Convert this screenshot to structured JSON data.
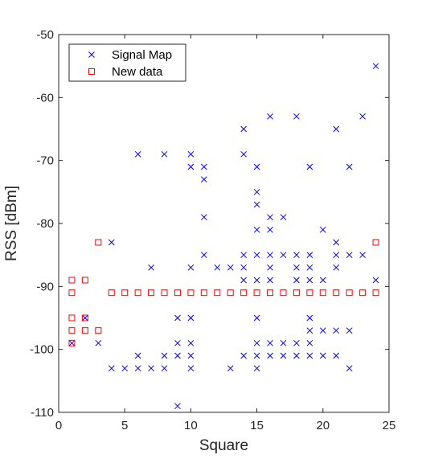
{
  "chart_data": {
    "type": "scatter",
    "title": "",
    "xlabel": "Square",
    "ylabel": "RSS [dBm]",
    "xlim": [
      0,
      25
    ],
    "ylim": [
      -110,
      -50
    ],
    "xticks": [
      0,
      5,
      10,
      15,
      20,
      25
    ],
    "yticks": [
      -110,
      -100,
      -90,
      -80,
      -70,
      -60,
      -50
    ],
    "grid": false,
    "legend_position": "top-left",
    "series": [
      {
        "name": "Signal Map",
        "marker": "x",
        "color": "#0000ff",
        "points": [
          [
            1,
            -99
          ],
          [
            2,
            -95
          ],
          [
            3,
            -99
          ],
          [
            4,
            -83
          ],
          [
            4,
            -103
          ],
          [
            5,
            -103
          ],
          [
            6,
            -69
          ],
          [
            6,
            -101
          ],
          [
            6,
            -103
          ],
          [
            7,
            -87
          ],
          [
            7,
            -103
          ],
          [
            8,
            -69
          ],
          [
            8,
            -101
          ],
          [
            8,
            -103
          ],
          [
            9,
            -95
          ],
          [
            9,
            -99
          ],
          [
            9,
            -101
          ],
          [
            9,
            -109
          ],
          [
            10,
            -69
          ],
          [
            10,
            -71
          ],
          [
            10,
            -87
          ],
          [
            10,
            -95
          ],
          [
            10,
            -99
          ],
          [
            10,
            -101
          ],
          [
            10,
            -103
          ],
          [
            11,
            -71
          ],
          [
            11,
            -73
          ],
          [
            11,
            -79
          ],
          [
            11,
            -85
          ],
          [
            12,
            -87
          ],
          [
            13,
            -87
          ],
          [
            13,
            -103
          ],
          [
            14,
            -65
          ],
          [
            14,
            -69
          ],
          [
            14,
            -85
          ],
          [
            14,
            -87
          ],
          [
            14,
            -89
          ],
          [
            14,
            -101
          ],
          [
            15,
            -71
          ],
          [
            15,
            -75
          ],
          [
            15,
            -77
          ],
          [
            15,
            -81
          ],
          [
            15,
            -85
          ],
          [
            15,
            -89
          ],
          [
            15,
            -95
          ],
          [
            15,
            -99
          ],
          [
            15,
            -101
          ],
          [
            15,
            -103
          ],
          [
            16,
            -63
          ],
          [
            16,
            -79
          ],
          [
            16,
            -81
          ],
          [
            16,
            -85
          ],
          [
            16,
            -87
          ],
          [
            16,
            -89
          ],
          [
            16,
            -99
          ],
          [
            16,
            -101
          ],
          [
            17,
            -79
          ],
          [
            17,
            -85
          ],
          [
            17,
            -99
          ],
          [
            17,
            -101
          ],
          [
            18,
            -63
          ],
          [
            18,
            -85
          ],
          [
            18,
            -87
          ],
          [
            18,
            -89
          ],
          [
            18,
            -99
          ],
          [
            18,
            -101
          ],
          [
            19,
            -71
          ],
          [
            19,
            -85
          ],
          [
            19,
            -87
          ],
          [
            19,
            -89
          ],
          [
            19,
            -95
          ],
          [
            19,
            -97
          ],
          [
            19,
            -99
          ],
          [
            19,
            -101
          ],
          [
            20,
            -81
          ],
          [
            20,
            -89
          ],
          [
            20,
            -97
          ],
          [
            20,
            -101
          ],
          [
            21,
            -65
          ],
          [
            21,
            -83
          ],
          [
            21,
            -85
          ],
          [
            21,
            -87
          ],
          [
            21,
            -97
          ],
          [
            21,
            -101
          ],
          [
            22,
            -71
          ],
          [
            22,
            -85
          ],
          [
            22,
            -97
          ],
          [
            22,
            -103
          ],
          [
            23,
            -63
          ],
          [
            23,
            -85
          ],
          [
            24,
            -55
          ],
          [
            24,
            -89
          ]
        ]
      },
      {
        "name": "New data",
        "marker": "square",
        "color": "#ff0000",
        "points": [
          [
            1,
            -89
          ],
          [
            1,
            -91
          ],
          [
            1,
            -95
          ],
          [
            1,
            -97
          ],
          [
            1,
            -99
          ],
          [
            2,
            -89
          ],
          [
            2,
            -95
          ],
          [
            2,
            -97
          ],
          [
            3,
            -83
          ],
          [
            3,
            -97
          ],
          [
            4,
            -91
          ],
          [
            5,
            -91
          ],
          [
            6,
            -91
          ],
          [
            7,
            -91
          ],
          [
            8,
            -91
          ],
          [
            9,
            -91
          ],
          [
            10,
            -91
          ],
          [
            11,
            -91
          ],
          [
            12,
            -91
          ],
          [
            13,
            -91
          ],
          [
            14,
            -91
          ],
          [
            15,
            -91
          ],
          [
            16,
            -91
          ],
          [
            17,
            -91
          ],
          [
            18,
            -91
          ],
          [
            19,
            -91
          ],
          [
            20,
            -91
          ],
          [
            21,
            -91
          ],
          [
            22,
            -91
          ],
          [
            23,
            -91
          ],
          [
            24,
            -91
          ],
          [
            24,
            -83
          ]
        ]
      }
    ]
  }
}
